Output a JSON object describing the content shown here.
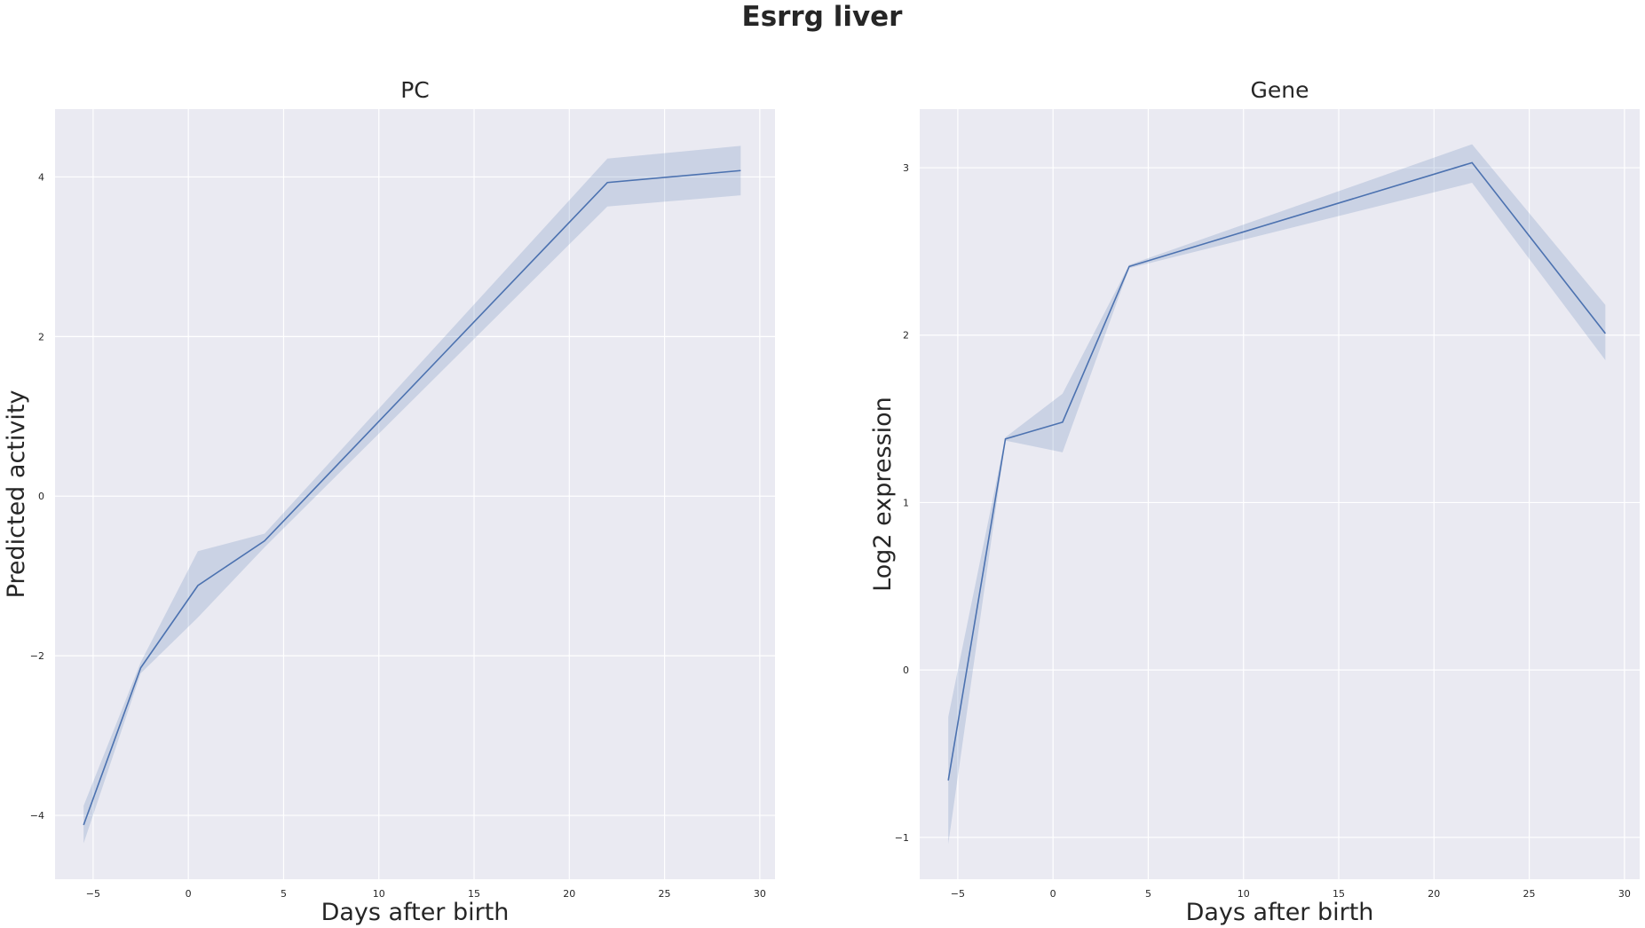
{
  "figure": {
    "title": "Esrrg liver"
  },
  "chart_data": [
    {
      "type": "line",
      "title": "PC",
      "xlabel": "Days after birth",
      "ylabel": "Predicted activity",
      "xlim": [
        -7.0,
        30.8
      ],
      "ylim": [
        -4.8,
        4.85
      ],
      "xticks": [
        -5,
        0,
        5,
        10,
        15,
        20,
        25,
        30
      ],
      "yticks": [
        -4,
        -2,
        0,
        2,
        4
      ],
      "ytick_labels": [
        "−4",
        "−2",
        "0",
        "2",
        "4"
      ],
      "xtick_labels": [
        "−5",
        "0",
        "5",
        "10",
        "15",
        "20",
        "25",
        "30"
      ],
      "grid": true,
      "color": "#4c72b0",
      "x": [
        -5.5,
        -2.5,
        0.5,
        4.0,
        22.0,
        29.0
      ],
      "y": [
        -4.12,
        -2.15,
        -1.12,
        -0.56,
        3.93,
        4.08
      ],
      "ci_lower": [
        -4.35,
        -2.22,
        -1.52,
        -0.64,
        3.63,
        3.77
      ],
      "ci_upper": [
        -3.88,
        -2.08,
        -0.69,
        -0.47,
        4.23,
        4.39
      ]
    },
    {
      "type": "line",
      "title": "Gene",
      "xlabel": "Days after birth",
      "ylabel": "Log2 expression",
      "xlim": [
        -7.0,
        30.8
      ],
      "ylim": [
        -1.25,
        3.35
      ],
      "xticks": [
        -5,
        0,
        5,
        10,
        15,
        20,
        25,
        30
      ],
      "yticks": [
        -1,
        0,
        1,
        2,
        3
      ],
      "ytick_labels": [
        "−1",
        "0",
        "1",
        "2",
        "3"
      ],
      "xtick_labels": [
        "−5",
        "0",
        "5",
        "10",
        "15",
        "20",
        "25",
        "30"
      ],
      "grid": true,
      "color": "#4c72b0",
      "x": [
        -5.5,
        -2.5,
        0.5,
        4.0,
        22.0,
        29.0
      ],
      "y": [
        -0.66,
        1.38,
        1.48,
        2.41,
        3.03,
        2.01
      ],
      "ci_lower": [
        -1.04,
        1.37,
        1.3,
        2.4,
        2.91,
        1.85
      ],
      "ci_upper": [
        -0.28,
        1.39,
        1.65,
        2.42,
        3.14,
        2.18
      ]
    }
  ]
}
